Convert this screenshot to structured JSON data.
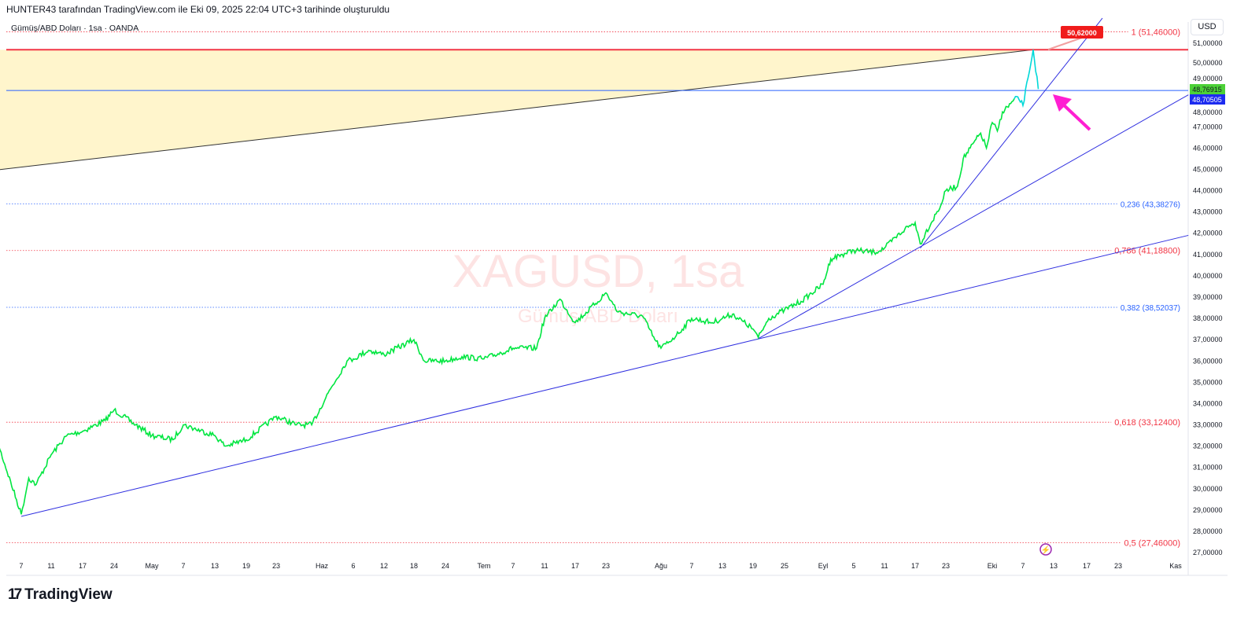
{
  "header": {
    "caption": "HUNTER43 tarafından TradingView.com ile Eki 09, 2025 22:04 UTC+3 tarihinde oluşturuldu",
    "symbol_line": "Gümüş/ABD Doları · 1sa · OANDA",
    "currency": "USD"
  },
  "watermark": {
    "ticker": "XAGUSD, 1sa",
    "name": "Gümüş/ABD Doları"
  },
  "branding": {
    "logo_text": "TradingView"
  },
  "colors": {
    "price": "#00e640",
    "price_recent": "#00d8d8",
    "trendline": "#3030e0",
    "fib": "#f23645",
    "fib_blue": "#2962ff",
    "zone_fill": "#fff5cc",
    "arrow": "#ff1fd2",
    "last_price_bg": "#4cd137",
    "line_price_bg": "#1c2bf0"
  },
  "chart_data": {
    "type": "line",
    "title": "",
    "ylim": [
      26.5,
      51.9
    ],
    "grid": false,
    "y_ticks": [
      "27,00000",
      "28,00000",
      "29,00000",
      "30,00000",
      "31,00000",
      "32,00000",
      "33,00000",
      "34,00000",
      "35,00000",
      "36,00000",
      "37,00000",
      "38,00000",
      "39,00000",
      "40,00000",
      "41,00000",
      "42,00000",
      "43,00000",
      "44,00000",
      "45,00000",
      "46,00000",
      "47,00000",
      "48,00000",
      "49,00000",
      "50,00000",
      "51,00000"
    ],
    "x_ticks": [
      [
        "2025-04-07",
        "7"
      ],
      [
        "2025-04-11",
        "11"
      ],
      [
        "2025-04-17",
        "17"
      ],
      [
        "2025-04-24",
        "24"
      ],
      [
        "2025-05-01",
        "May"
      ],
      [
        "2025-05-07",
        "7"
      ],
      [
        "2025-05-13",
        "13"
      ],
      [
        "2025-05-19",
        "19"
      ],
      [
        "2025-05-23",
        "23"
      ],
      [
        "2025-06-01",
        "Haz"
      ],
      [
        "2025-06-06",
        "6"
      ],
      [
        "2025-06-12",
        "12"
      ],
      [
        "2025-06-18",
        "18"
      ],
      [
        "2025-06-24",
        "24"
      ],
      [
        "2025-07-01",
        "Tem"
      ],
      [
        "2025-07-07",
        "7"
      ],
      [
        "2025-07-11",
        "11"
      ],
      [
        "2025-07-17",
        "17"
      ],
      [
        "2025-07-23",
        "23"
      ],
      [
        "2025-08-01",
        "Ağu"
      ],
      [
        "2025-08-07",
        "7"
      ],
      [
        "2025-08-13",
        "13"
      ],
      [
        "2025-08-19",
        "19"
      ],
      [
        "2025-08-25",
        "25"
      ],
      [
        "2025-09-01",
        "Eyl"
      ],
      [
        "2025-09-05",
        "5"
      ],
      [
        "2025-09-11",
        "11"
      ],
      [
        "2025-09-17",
        "17"
      ],
      [
        "2025-09-23",
        "23"
      ],
      [
        "2025-10-01",
        "Eki"
      ],
      [
        "2025-10-07",
        "7"
      ],
      [
        "2025-10-13",
        "13"
      ],
      [
        "2025-10-17",
        "17"
      ],
      [
        "2025-10-23",
        "23"
      ],
      [
        "2025-11-01",
        "Kas"
      ]
    ],
    "series": [
      {
        "values": [
          [
            "2025-04-03",
            34.2
          ],
          [
            "2025-04-04",
            32.0
          ],
          [
            "2025-04-07",
            28.8
          ],
          [
            "2025-04-08",
            30.5
          ],
          [
            "2025-04-09",
            30.2
          ],
          [
            "2025-04-11",
            31.6
          ],
          [
            "2025-04-14",
            32.5
          ],
          [
            "2025-04-17",
            32.7
          ],
          [
            "2025-04-22",
            33.2
          ],
          [
            "2025-04-24",
            33.7
          ],
          [
            "2025-04-28",
            33.0
          ],
          [
            "2025-05-01",
            32.5
          ],
          [
            "2025-05-05",
            32.3
          ],
          [
            "2025-05-07",
            33.0
          ],
          [
            "2025-05-13",
            32.5
          ],
          [
            "2025-05-15",
            32.0
          ],
          [
            "2025-05-19",
            32.3
          ],
          [
            "2025-05-23",
            33.4
          ],
          [
            "2025-05-27",
            33.0
          ],
          [
            "2025-05-30",
            33.0
          ],
          [
            "2025-06-02",
            34.5
          ],
          [
            "2025-06-05",
            36.0
          ],
          [
            "2025-06-06",
            36.1
          ],
          [
            "2025-06-09",
            36.5
          ],
          [
            "2025-06-12",
            36.3
          ],
          [
            "2025-06-18",
            37.0
          ],
          [
            "2025-06-20",
            36.0
          ],
          [
            "2025-06-24",
            36.0
          ],
          [
            "2025-06-27",
            36.2
          ],
          [
            "2025-07-01",
            36.1
          ],
          [
            "2025-07-07",
            36.6
          ],
          [
            "2025-07-10",
            36.6
          ],
          [
            "2025-07-11",
            38.0
          ],
          [
            "2025-07-14",
            38.9
          ],
          [
            "2025-07-17",
            37.8
          ],
          [
            "2025-07-21",
            38.7
          ],
          [
            "2025-07-23",
            39.2
          ],
          [
            "2025-07-25",
            38.3
          ],
          [
            "2025-07-29",
            38.1
          ],
          [
            "2025-07-31",
            37.0
          ],
          [
            "2025-08-01",
            36.6
          ],
          [
            "2025-08-04",
            37.2
          ],
          [
            "2025-08-07",
            38.0
          ],
          [
            "2025-08-11",
            37.8
          ],
          [
            "2025-08-13",
            38.0
          ],
          [
            "2025-08-15",
            38.2
          ],
          [
            "2025-08-19",
            37.5
          ],
          [
            "2025-08-20",
            37.1
          ],
          [
            "2025-08-22",
            38.0
          ],
          [
            "2025-08-25",
            38.4
          ],
          [
            "2025-08-28",
            38.8
          ],
          [
            "2025-09-01",
            39.6
          ],
          [
            "2025-09-02",
            40.8
          ],
          [
            "2025-09-05",
            41.2
          ],
          [
            "2025-09-09",
            41.1
          ],
          [
            "2025-09-11",
            41.3
          ],
          [
            "2025-09-15",
            42.2
          ],
          [
            "2025-09-17",
            42.5
          ],
          [
            "2025-09-18",
            41.5
          ],
          [
            "2025-09-19",
            42.0
          ],
          [
            "2025-09-22",
            43.3
          ],
          [
            "2025-09-23",
            44.0
          ],
          [
            "2025-09-25",
            44.2
          ],
          [
            "2025-09-26",
            45.5
          ],
          [
            "2025-09-29",
            46.7
          ],
          [
            "2025-09-30",
            46.0
          ],
          [
            "2025-10-01",
            47.2
          ],
          [
            "2025-10-02",
            46.8
          ],
          [
            "2025-10-03",
            47.7
          ],
          [
            "2025-10-06",
            48.4
          ],
          [
            "2025-10-07",
            48.0
          ],
          [
            "2025-10-08",
            49.3
          ],
          [
            "2025-10-09",
            50.62
          ],
          [
            "2025-10-10",
            48.77
          ]
        ]
      }
    ],
    "fib_levels": [
      {
        "label": "1 (51,46000)",
        "value": 51.46,
        "color": "red"
      },
      {
        "label": "0,236 (43,38276)",
        "value": 43.38276,
        "color": "blue"
      },
      {
        "label": "0,786 (41,18800)",
        "value": 41.188,
        "color": "red"
      },
      {
        "label": "0,382 (38,52037)",
        "value": 38.52037,
        "color": "blue"
      },
      {
        "label": "0,618 (33,12400)",
        "value": 33.124,
        "color": "red"
      },
      {
        "label": "0,5 (27,46000)",
        "value": 27.46,
        "color": "red"
      }
    ],
    "trendlines": [
      {
        "from": [
          "2025-04-07",
          28.7
        ],
        "to": [
          "2025-11-03",
          41.9
        ]
      },
      {
        "from": [
          "2025-08-20",
          37.05
        ],
        "to": [
          "2025-11-03",
          48.5
        ]
      },
      {
        "from": [
          "2025-09-18",
          41.3
        ],
        "to": [
          "2025-10-20",
          52.1
        ]
      }
    ],
    "zone": {
      "from": [
        "2025-04-03",
        44.9
      ],
      "to": [
        "2025-10-09",
        50.62
      ],
      "top": 50.62
    },
    "horizontal_lines": [
      {
        "value": 50.62,
        "color": "red"
      },
      {
        "value": 48.70505,
        "color": "blue"
      }
    ],
    "price_labels": {
      "callout": "50,62000",
      "last": "48,76915",
      "line": "48,70505"
    }
  }
}
